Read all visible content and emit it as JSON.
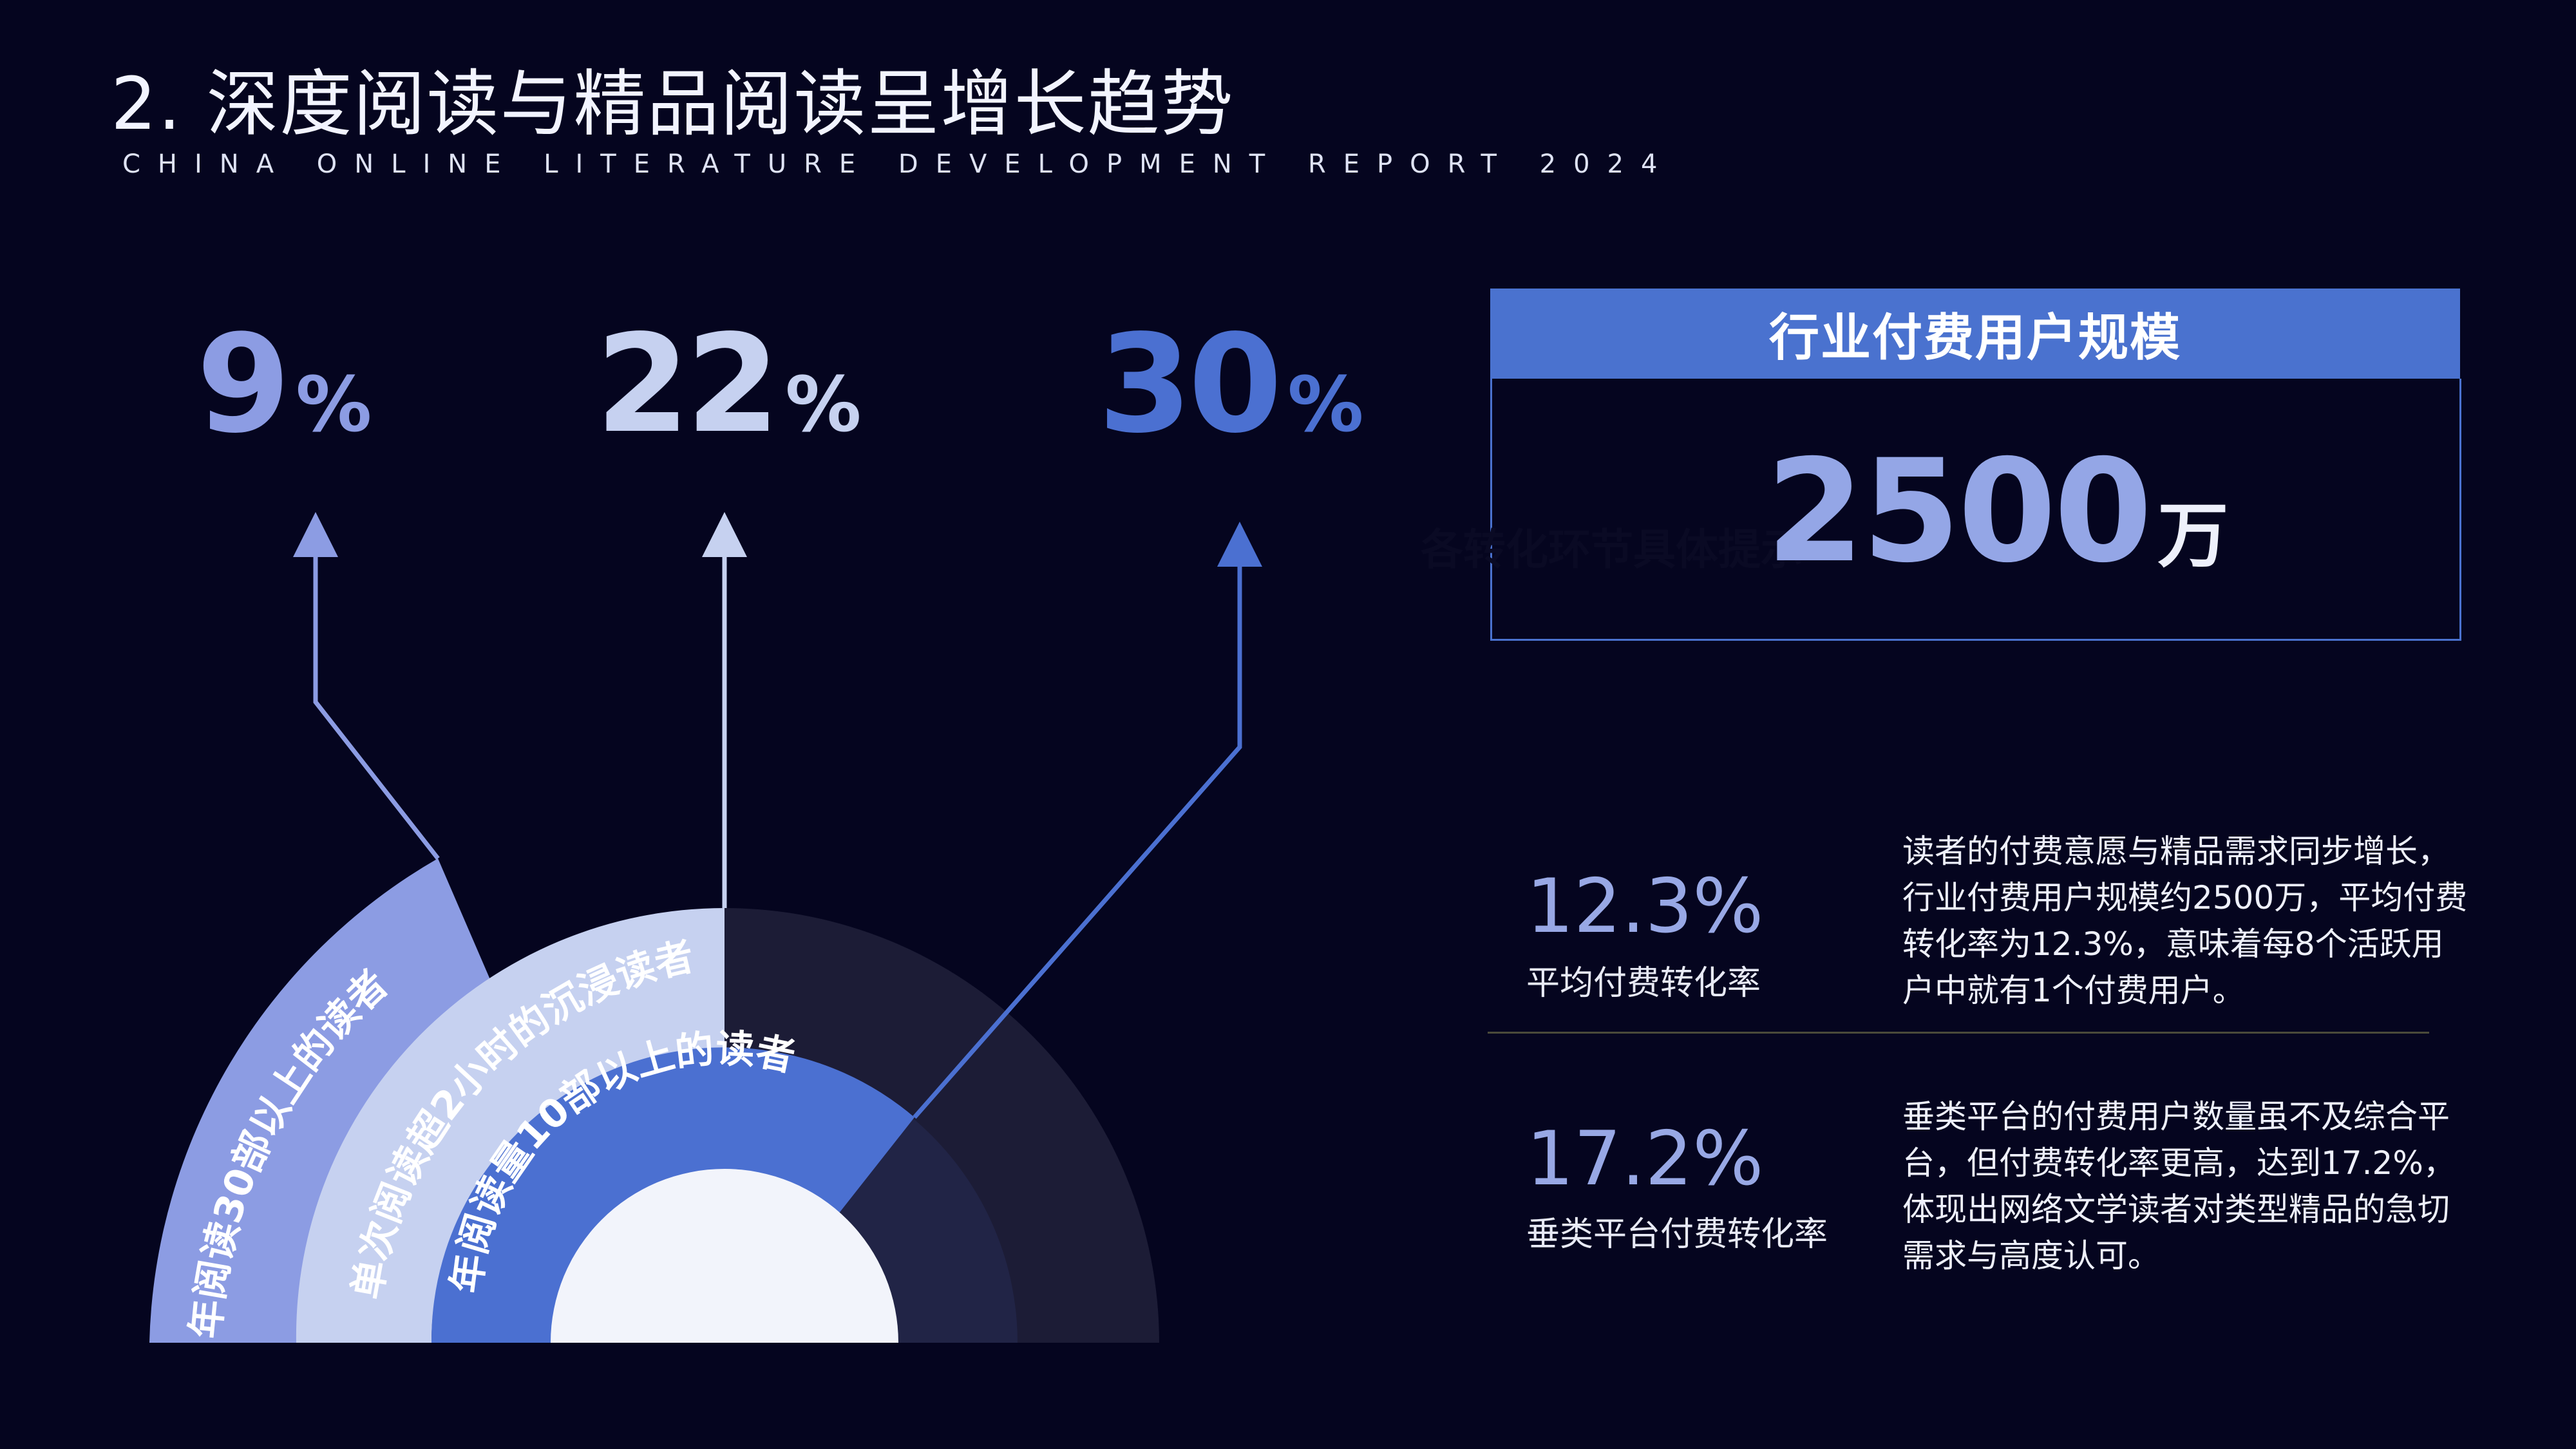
{
  "header": {
    "title": "2. 深度阅读与精品阅读呈增长趋势",
    "subtitle": "CHINA ONLINE LITERATURE DEVELOPMENT REPORT 2024"
  },
  "stats": [
    {
      "value": "9",
      "unit": "%",
      "label": "年阅读30部以上的读者",
      "color": "#8c9ce3"
    },
    {
      "value": "22",
      "unit": "%",
      "label": "单次阅读超2小时的沉浸读者",
      "color": "#c6d1f0"
    },
    {
      "value": "30",
      "unit": "%",
      "label": "年阅读量10部以上的读者",
      "color": "#4b70d1"
    }
  ],
  "scale": {
    "box": {
      "header": "行业付费用户规模",
      "value": "2500",
      "unit": "万",
      "ghost_text": "各转化环节具体提示"
    },
    "metrics": [
      {
        "value": "12.3%",
        "label": "平均付费转化率",
        "description": "读者的付费意愿与精品需求同步增长，行业付费用户规模约2500万，平均付费转化率为12.3%，意味着每8个活跃用户中就有1个付费用户。"
      },
      {
        "value": "17.2%",
        "label": "垂类平台付费转化率",
        "description": "垂类平台的付费用户数量虽不及综合平台，但付费转化率更高，达到17.2%，体现出网络文学读者对类型精品的急切需求与高度认可。"
      }
    ]
  },
  "colors": {
    "background": "#05051f",
    "accent": "#4a72cf",
    "light": "#c6d1f0",
    "mid": "#8c9ce3",
    "dark_arc": "#1c1c36"
  }
}
